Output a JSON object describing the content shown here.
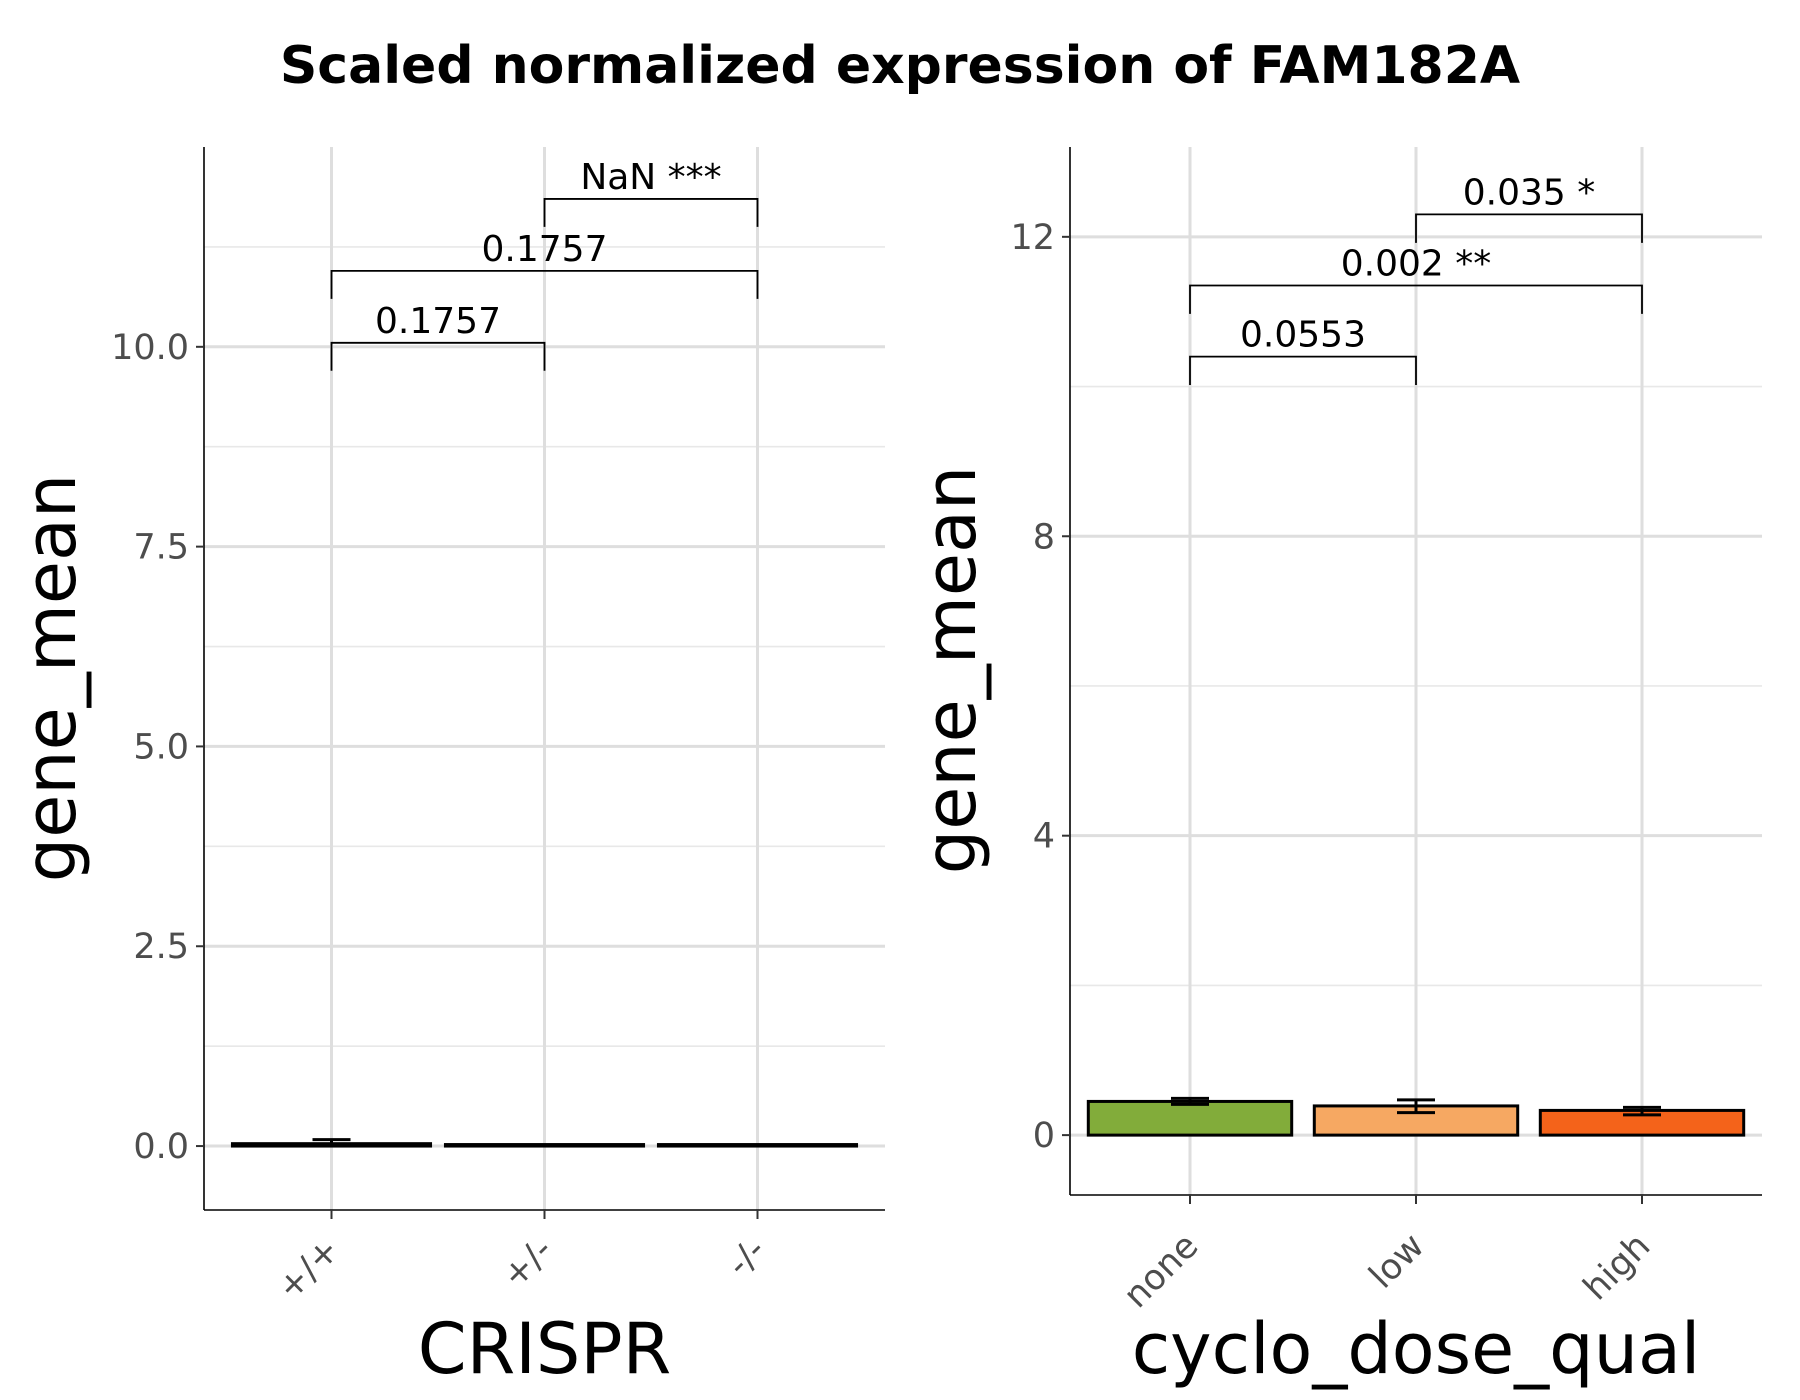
{
  "figure": {
    "title": "Scaled normalized expression of FAM182A"
  },
  "chart_data": [
    {
      "type": "bar",
      "xlabel": "CRISPR",
      "ylabel": "gene_mean",
      "categories": [
        "+/+",
        "+/-",
        "-/-"
      ],
      "values": [
        0.03,
        0.0,
        0.0
      ],
      "error_low": [
        0.0,
        0.0,
        0.0
      ],
      "error_high": [
        0.08,
        0.0,
        0.0
      ],
      "colors": [
        "#000000",
        "#000000",
        "#000000"
      ],
      "ylim": [
        -0.8,
        12.5
      ],
      "yticks": [
        0.0,
        2.5,
        5.0,
        7.5,
        10.0
      ],
      "ytick_labels": [
        "0.0",
        "2.5",
        "5.0",
        "7.5",
        "10.0"
      ],
      "grid": true,
      "comparisons": [
        {
          "from": 0,
          "to": 1,
          "y": 10.05,
          "drop": 0.35,
          "label": "0.1757"
        },
        {
          "from": 0,
          "to": 2,
          "y": 10.95,
          "drop": 0.35,
          "label": "0.1757"
        },
        {
          "from": 1,
          "to": 2,
          "y": 11.85,
          "drop": 0.35,
          "label": "NaN ***"
        }
      ]
    },
    {
      "type": "bar",
      "xlabel": "cyclo_dose_qual",
      "ylabel": "gene_mean",
      "categories": [
        "none",
        "low",
        "high"
      ],
      "values": [
        0.45,
        0.39,
        0.33
      ],
      "error_low": [
        0.41,
        0.3,
        0.27
      ],
      "error_high": [
        0.49,
        0.47,
        0.37
      ],
      "colors": [
        "#82ac3a",
        "#f6a862",
        "#f4631a"
      ],
      "ylim": [
        -0.8,
        13.2
      ],
      "yticks": [
        0,
        4,
        8,
        12
      ],
      "ytick_labels": [
        "0",
        "4",
        "8",
        "12"
      ],
      "grid": true,
      "comparisons": [
        {
          "from": 0,
          "to": 1,
          "y": 10.4,
          "drop": 0.38,
          "label": "0.0553"
        },
        {
          "from": 0,
          "to": 2,
          "y": 11.35,
          "drop": 0.38,
          "label": "0.002 **"
        },
        {
          "from": 1,
          "to": 2,
          "y": 12.3,
          "drop": 0.38,
          "label": "0.035 *"
        }
      ]
    }
  ]
}
